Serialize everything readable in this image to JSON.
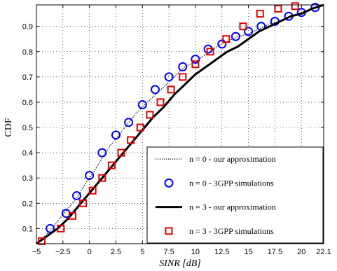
{
  "chart_data": {
    "type": "line",
    "title": "",
    "xlabel": "SINR  [dB]",
    "ylabel": "CDF",
    "xlim": [
      -5,
      22.1
    ],
    "ylim": [
      0.04,
      0.985
    ],
    "x_ticks": [
      -5,
      -2.5,
      0,
      2.5,
      5,
      7.5,
      10,
      12.5,
      15,
      17.5,
      20,
      22.1
    ],
    "x_tick_labels": [
      "−5",
      "−2.5",
      "0",
      "2.5",
      "5",
      "7.5",
      "10",
      "12.5",
      "15",
      "17.5",
      "20",
      "22.1"
    ],
    "y_ticks": [
      0.1,
      0.2,
      0.3,
      0.4,
      0.5,
      0.6,
      0.7,
      0.8,
      0.9
    ],
    "y_tick_labels": [
      "0.1",
      "0.2",
      "0.3",
      "0.4",
      "0.5",
      "0.6",
      "0.7",
      "0.8",
      "0.9"
    ],
    "grid": true,
    "legend_position": "bottom-right",
    "series": [
      {
        "name": "n = 0  -  our approximation",
        "style": "dotted-line",
        "color": "#000000",
        "x": [
          -5,
          -4.2,
          -3.5,
          -2.8,
          -2,
          -1.2,
          -0.5,
          0,
          0.5,
          1.2,
          2,
          2.8,
          3.5,
          4.5,
          5.2,
          6,
          7,
          8,
          9,
          10,
          11,
          12,
          13,
          14,
          15,
          16,
          17,
          18,
          19,
          20,
          21,
          22.1
        ],
        "y": [
          0.04,
          0.07,
          0.1,
          0.14,
          0.18,
          0.22,
          0.27,
          0.3,
          0.33,
          0.38,
          0.43,
          0.47,
          0.51,
          0.56,
          0.59,
          0.62,
          0.66,
          0.7,
          0.74,
          0.76,
          0.79,
          0.82,
          0.84,
          0.86,
          0.87,
          0.89,
          0.91,
          0.92,
          0.94,
          0.955,
          0.97,
          0.985
        ]
      },
      {
        "name": "n = 0  -  3GPP simulations",
        "style": "circle-markers",
        "color": "#0000ff",
        "x": [
          -3.7,
          -2.2,
          -1.2,
          0,
          1.2,
          2.5,
          3.7,
          5,
          6.2,
          7.5,
          8.8,
          10,
          11.2,
          12.5,
          13.8,
          15,
          16.2,
          17.5,
          18.8,
          20,
          21.3
        ],
        "y": [
          0.1,
          0.16,
          0.23,
          0.31,
          0.4,
          0.47,
          0.52,
          0.59,
          0.65,
          0.7,
          0.74,
          0.77,
          0.81,
          0.83,
          0.86,
          0.88,
          0.9,
          0.92,
          0.94,
          0.955,
          0.975
        ]
      },
      {
        "name": "n = 3  -  our approximation",
        "style": "solid-line",
        "color": "#000000",
        "x": [
          -5,
          -4,
          -3,
          -2,
          -1,
          0,
          1,
          2,
          3,
          4,
          5,
          6,
          7,
          8,
          9,
          10,
          11,
          12,
          13,
          14,
          15,
          16,
          17,
          18,
          19,
          20,
          21,
          22.1
        ],
        "y": [
          0.04,
          0.07,
          0.1,
          0.14,
          0.19,
          0.24,
          0.29,
          0.34,
          0.39,
          0.44,
          0.49,
          0.54,
          0.58,
          0.63,
          0.67,
          0.71,
          0.74,
          0.77,
          0.8,
          0.82,
          0.85,
          0.88,
          0.9,
          0.92,
          0.94,
          0.95,
          0.97,
          0.985
        ]
      },
      {
        "name": "n = 3  -  3GPP simulations",
        "style": "square-markers",
        "color": "#dd0000",
        "x": [
          -4.5,
          -2.7,
          -1.6,
          -0.6,
          0.3,
          1.2,
          2.1,
          3,
          3.9,
          4.8,
          5.7,
          6.7,
          7.7,
          8.8,
          10,
          11.4,
          12.9,
          14.5,
          16.1,
          17.8,
          19.4,
          21.0
        ],
        "y": [
          0.05,
          0.1,
          0.15,
          0.2,
          0.25,
          0.3,
          0.35,
          0.4,
          0.45,
          0.5,
          0.55,
          0.6,
          0.65,
          0.7,
          0.75,
          0.8,
          0.85,
          0.9,
          0.95,
          0.97,
          0.98,
          0.99
        ]
      }
    ]
  }
}
